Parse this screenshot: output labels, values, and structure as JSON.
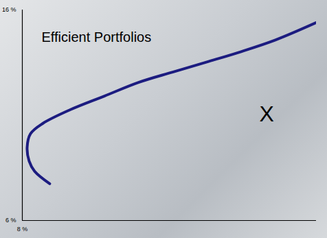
{
  "chart_data": {
    "type": "line",
    "annotations": [
      "Efficient Portfolios",
      "X"
    ],
    "x": [
      10.05,
      8.92,
      8.51,
      8.36,
      8.61,
      9.53,
      11.58,
      14.14,
      16.7,
      19.25,
      21.81,
      24.37,
      26.93,
      30.0
    ],
    "values": [
      7.75,
      8.34,
      8.82,
      9.47,
      10.12,
      10.61,
      11.26,
      11.91,
      12.56,
      13.05,
      13.53,
      14.02,
      14.57,
      15.4
    ],
    "color": "#1c1c80",
    "xlim": [
      8,
      30
    ],
    "xticks": [
      {
        "value": 8,
        "label": "8 %"
      }
    ],
    "ylim": [
      6,
      16
    ],
    "yticks": [
      {
        "value": 6,
        "label": "6 %"
      },
      {
        "value": 16,
        "label": "16 %"
      }
    ],
    "grid": false
  }
}
